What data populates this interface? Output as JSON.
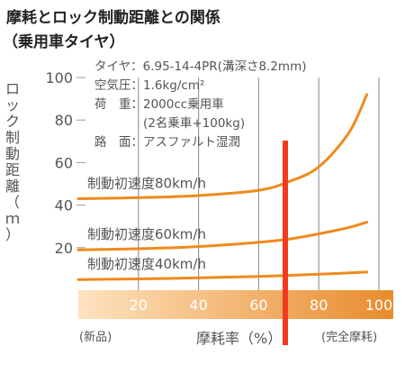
{
  "chart_data": {
    "type": "line",
    "title": "摩耗とロック制動距離との関係",
    "subtitle": "（乗用車タイヤ）",
    "ylabel": "ロック制動距離（ｍ）",
    "xlabel": "摩耗率（%）",
    "x_left_note": "(新品)",
    "x_right_note": "(完全摩耗)",
    "xlim": [
      0,
      100
    ],
    "ylim": [
      0,
      100
    ],
    "x_ticks": [
      20,
      40,
      60,
      80,
      100
    ],
    "y_ticks": [
      20,
      40,
      60,
      80,
      100
    ],
    "conditions": [
      "タイヤ：6.95-14-4PR(溝深さ8.2mm)",
      "空気圧：1.6kg/cm²",
      "荷　重：2000cc乗用車",
      "　　　　(2名乗車+100kg)",
      "路　面：アスファルト湿潤"
    ],
    "series": [
      {
        "name": "制動初速度80km/h",
        "x": [
          0,
          20,
          40,
          60,
          70,
          80,
          90,
          96
        ],
        "y": [
          43,
          43.5,
          44.5,
          47,
          51,
          58,
          74,
          92
        ]
      },
      {
        "name": "制動初速度60km/h",
        "x": [
          0,
          20,
          40,
          60,
          70,
          80,
          90,
          96
        ],
        "y": [
          19,
          19.5,
          20.5,
          22.5,
          24,
          26.5,
          29.5,
          32
        ]
      },
      {
        "name": "制動初速度40km/h",
        "x": [
          0,
          20,
          40,
          60,
          80,
          96
        ],
        "y": [
          5,
          5.3,
          5.8,
          6.5,
          7.5,
          8.5
        ]
      }
    ],
    "highlight_x": 70,
    "colors": {
      "curve": "#f08a1c",
      "band_light": "#fde3bf",
      "band_dark": "#e98b2c",
      "highlight": "#f23a1f",
      "grid": "#9a9a9a",
      "text": "#555555"
    },
    "grid": true
  }
}
